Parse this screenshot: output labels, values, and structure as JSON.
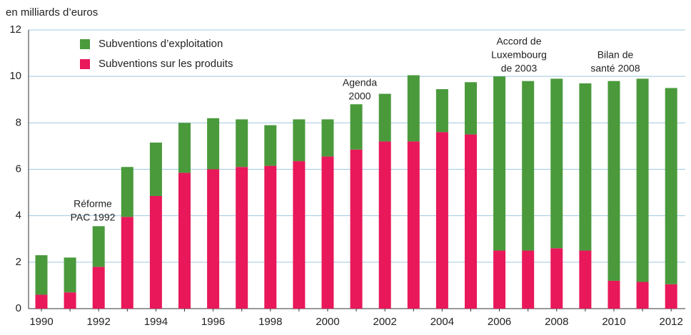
{
  "chart_data": {
    "type": "stacked_bar",
    "y_label": "en milliards d’euros",
    "categories": [
      "1990",
      null,
      "1992",
      null,
      "1994",
      null,
      "1996",
      null,
      "1998",
      null,
      "2000",
      null,
      "2002",
      null,
      "2004",
      null,
      "2006",
      null,
      "2008",
      null,
      "2010",
      null,
      "2012"
    ],
    "series": [
      {
        "name": "Subventions sur les produits",
        "color": "#e8185a",
        "values": [
          0.6,
          0.7,
          1.8,
          3.95,
          4.85,
          5.85,
          6.0,
          6.1,
          6.15,
          6.35,
          6.55,
          6.85,
          7.2,
          7.2,
          7.6,
          7.5,
          2.5,
          2.5,
          2.6,
          2.5,
          1.2,
          1.15,
          1.05
        ]
      },
      {
        "name": "Subventions d’exploitation",
        "color": "#4a9a3c",
        "values": [
          1.7,
          1.5,
          1.75,
          2.15,
          2.3,
          2.15,
          2.2,
          2.05,
          1.75,
          1.8,
          1.6,
          1.95,
          2.05,
          2.85,
          1.85,
          2.25,
          7.5,
          7.3,
          7.3,
          7.2,
          8.6,
          8.75,
          8.45
        ]
      }
    ],
    "ylim": [
      0,
      12
    ],
    "yticks": [
      0,
      2,
      4,
      6,
      8,
      10,
      12
    ],
    "grid": true,
    "annotations": [
      {
        "lines": [
          "Réforme",
          "PAC 1992"
        ]
      },
      {
        "lines": [
          "Agenda",
          "2000"
        ]
      },
      {
        "lines": [
          "Accord de",
          "Luxembourg",
          "de 2003"
        ]
      },
      {
        "lines": [
          "Bilan de",
          "santé 2008"
        ]
      }
    ]
  }
}
